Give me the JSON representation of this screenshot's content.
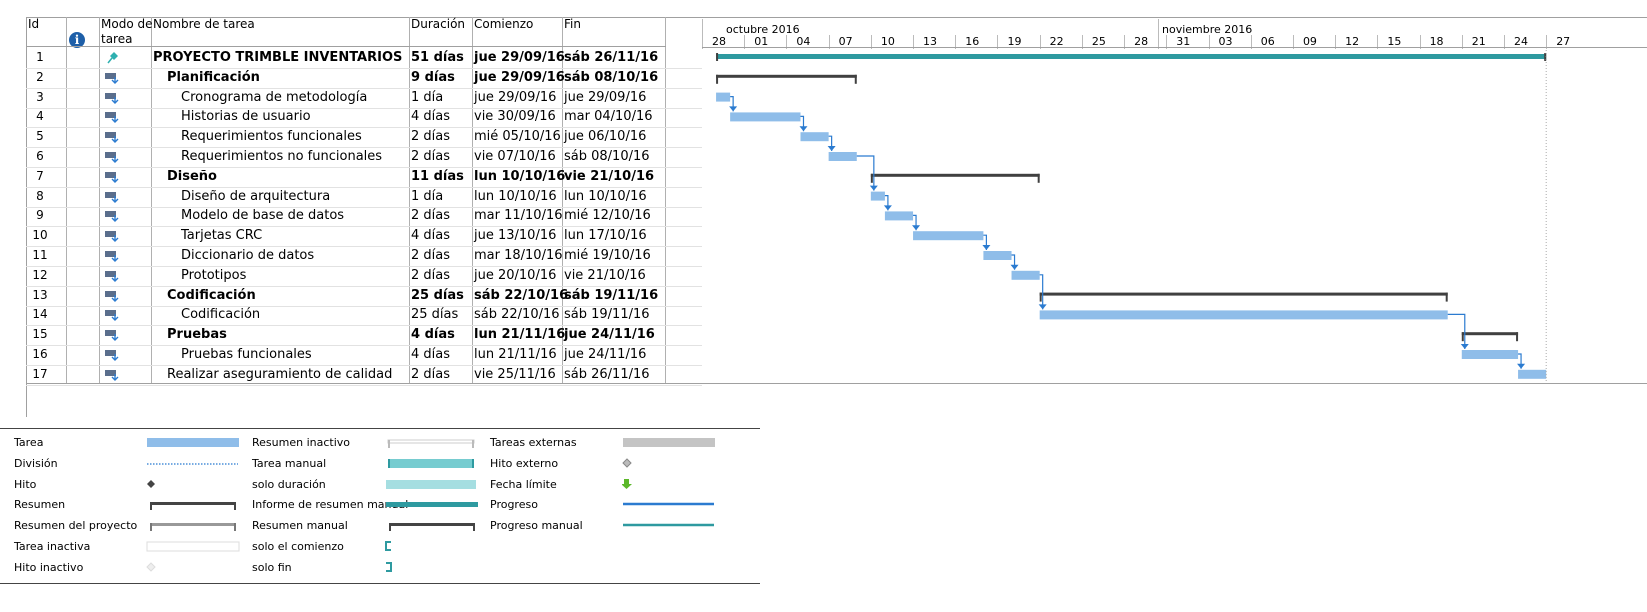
{
  "table": {
    "headers": {
      "id": "Id",
      "mode_line1": "Modo de",
      "mode_line2": "tarea",
      "name": "Nombre de tarea",
      "duration": "Duración",
      "start": "Comienzo",
      "finish": "Fin"
    },
    "rows": [
      {
        "id": "1",
        "name": "PROYECTO TRIMBLE INVENTARIOS",
        "duration": "51 días",
        "start": "jue 29/09/16",
        "finish": "sáb 26/11/16",
        "level": 0,
        "bold": true,
        "mode": "manual-pin"
      },
      {
        "id": "2",
        "name": "Planificación",
        "duration": "9 días",
        "start": "jue 29/09/16",
        "finish": "sáb 08/10/16",
        "level": 1,
        "bold": true,
        "mode": "auto"
      },
      {
        "id": "3",
        "name": "Cronograma de metodología",
        "duration": "1 día",
        "start": "jue 29/09/16",
        "finish": "jue 29/09/16",
        "level": 2,
        "bold": false,
        "mode": "auto"
      },
      {
        "id": "4",
        "name": "Historias de usuario",
        "duration": "4 días",
        "start": "vie 30/09/16",
        "finish": "mar 04/10/16",
        "level": 2,
        "bold": false,
        "mode": "auto"
      },
      {
        "id": "5",
        "name": "Requerimientos funcionales",
        "duration": "2 días",
        "start": "mié 05/10/16",
        "finish": "jue 06/10/16",
        "level": 2,
        "bold": false,
        "mode": "auto"
      },
      {
        "id": "6",
        "name": "Requerimientos no funcionales",
        "duration": "2 días",
        "start": "vie 07/10/16",
        "finish": "sáb 08/10/16",
        "level": 2,
        "bold": false,
        "mode": "auto"
      },
      {
        "id": "7",
        "name": "Diseño",
        "duration": "11 días",
        "start": "lun 10/10/16",
        "finish": "vie 21/10/16",
        "level": 1,
        "bold": true,
        "mode": "auto"
      },
      {
        "id": "8",
        "name": "Diseño de arquitectura",
        "duration": "1 día",
        "start": "lun 10/10/16",
        "finish": "lun 10/10/16",
        "level": 2,
        "bold": false,
        "mode": "auto"
      },
      {
        "id": "9",
        "name": "Modelo de base de datos",
        "duration": "2 días",
        "start": "mar 11/10/16",
        "finish": "mié 12/10/16",
        "level": 2,
        "bold": false,
        "mode": "auto"
      },
      {
        "id": "10",
        "name": "Tarjetas CRC",
        "duration": "4 días",
        "start": "jue 13/10/16",
        "finish": "lun 17/10/16",
        "level": 2,
        "bold": false,
        "mode": "auto"
      },
      {
        "id": "11",
        "name": "Diccionario de datos",
        "duration": "2 días",
        "start": "mar 18/10/16",
        "finish": "mié 19/10/16",
        "level": 2,
        "bold": false,
        "mode": "auto"
      },
      {
        "id": "12",
        "name": "Prototipos",
        "duration": "2 días",
        "start": "jue 20/10/16",
        "finish": "vie 21/10/16",
        "level": 2,
        "bold": false,
        "mode": "auto"
      },
      {
        "id": "13",
        "name": "Codificación",
        "duration": "25 días",
        "start": "sáb 22/10/16",
        "finish": "sáb 19/11/16",
        "level": 1,
        "bold": true,
        "mode": "auto"
      },
      {
        "id": "14",
        "name": "Codificación",
        "duration": "25 días",
        "start": "sáb 22/10/16",
        "finish": "sáb 19/11/16",
        "level": 2,
        "bold": false,
        "mode": "auto"
      },
      {
        "id": "15",
        "name": "Pruebas",
        "duration": "4 días",
        "start": "lun 21/11/16",
        "finish": "jue 24/11/16",
        "level": 1,
        "bold": true,
        "mode": "auto"
      },
      {
        "id": "16",
        "name": "Pruebas funcionales",
        "duration": "4 días",
        "start": "lun 21/11/16",
        "finish": "jue 24/11/16",
        "level": 2,
        "bold": false,
        "mode": "auto"
      },
      {
        "id": "17",
        "name": "Realizar aseguramiento de calidad",
        "duration": "2 días",
        "start": "vie 25/11/16",
        "finish": "sáb 26/11/16",
        "level": 1,
        "bold": false,
        "mode": "auto"
      }
    ]
  },
  "timescale": {
    "months": [
      "octubre 2016",
      "noviembre 2016"
    ],
    "days": [
      "28",
      "01",
      "04",
      "07",
      "10",
      "13",
      "16",
      "19",
      "22",
      "25",
      "28",
      "31",
      "03",
      "06",
      "09",
      "12",
      "15",
      "18",
      "21",
      "24",
      "27"
    ]
  },
  "gantt": {
    "bars": [
      {
        "row": 1,
        "type": "project-summary",
        "start": "2016-09-29",
        "end": "2016-11-26"
      },
      {
        "row": 2,
        "type": "summary",
        "start": "2016-09-29",
        "end": "2016-10-08"
      },
      {
        "row": 3,
        "type": "task",
        "start": "2016-09-29",
        "end": "2016-09-29"
      },
      {
        "row": 4,
        "type": "task",
        "start": "2016-09-30",
        "end": "2016-10-04"
      },
      {
        "row": 5,
        "type": "task",
        "start": "2016-10-05",
        "end": "2016-10-06"
      },
      {
        "row": 6,
        "type": "task",
        "start": "2016-10-07",
        "end": "2016-10-08"
      },
      {
        "row": 7,
        "type": "summary",
        "start": "2016-10-10",
        "end": "2016-10-21"
      },
      {
        "row": 8,
        "type": "task",
        "start": "2016-10-10",
        "end": "2016-10-10"
      },
      {
        "row": 9,
        "type": "task",
        "start": "2016-10-11",
        "end": "2016-10-12"
      },
      {
        "row": 10,
        "type": "task",
        "start": "2016-10-13",
        "end": "2016-10-17"
      },
      {
        "row": 11,
        "type": "task",
        "start": "2016-10-18",
        "end": "2016-10-19"
      },
      {
        "row": 12,
        "type": "task",
        "start": "2016-10-20",
        "end": "2016-10-21"
      },
      {
        "row": 13,
        "type": "summary",
        "start": "2016-10-22",
        "end": "2016-11-19"
      },
      {
        "row": 14,
        "type": "task",
        "start": "2016-10-22",
        "end": "2016-11-19"
      },
      {
        "row": 15,
        "type": "summary",
        "start": "2016-11-21",
        "end": "2016-11-24"
      },
      {
        "row": 16,
        "type": "task",
        "start": "2016-11-21",
        "end": "2016-11-24"
      },
      {
        "row": 17,
        "type": "task",
        "start": "2016-11-25",
        "end": "2016-11-26"
      }
    ],
    "links": [
      [
        3,
        4
      ],
      [
        4,
        5
      ],
      [
        5,
        6
      ],
      [
        6,
        8
      ],
      [
        8,
        9
      ],
      [
        9,
        10
      ],
      [
        10,
        11
      ],
      [
        11,
        12
      ],
      [
        12,
        14
      ],
      [
        14,
        16
      ],
      [
        16,
        17
      ]
    ],
    "colors": {
      "task": "#8fbde9",
      "summary": "#404040",
      "project": "#2e9aa0",
      "link": "#2b7bd0",
      "deadline": "#aaaaaa"
    }
  },
  "legend": [
    {
      "label": "Tarea",
      "symbol": "task"
    },
    {
      "label": "División",
      "symbol": "split"
    },
    {
      "label": "Hito",
      "symbol": "milestone"
    },
    {
      "label": "Resumen",
      "symbol": "summary"
    },
    {
      "label": "Resumen del proyecto",
      "symbol": "project-summary"
    },
    {
      "label": "Tarea inactiva",
      "symbol": "inactive-task"
    },
    {
      "label": "Hito inactivo",
      "symbol": "inactive-milestone"
    },
    {
      "label": "Resumen inactivo",
      "symbol": "inactive-summary"
    },
    {
      "label": "Tarea manual",
      "symbol": "manual-task"
    },
    {
      "label": "solo duración",
      "symbol": "duration-only"
    },
    {
      "label": "Informe de resumen manual",
      "symbol": "manual-summary-rollup"
    },
    {
      "label": "Resumen manual",
      "symbol": "manual-summary"
    },
    {
      "label": "solo el comienzo",
      "symbol": "start-only"
    },
    {
      "label": "solo fin",
      "symbol": "finish-only"
    },
    {
      "label": "Tareas externas",
      "symbol": "external-tasks"
    },
    {
      "label": "Hito externo",
      "symbol": "external-milestone"
    },
    {
      "label": "Fecha límite",
      "symbol": "deadline"
    },
    {
      "label": "Progreso",
      "symbol": "progress"
    },
    {
      "label": "Progreso manual",
      "symbol": "manual-progress"
    }
  ]
}
